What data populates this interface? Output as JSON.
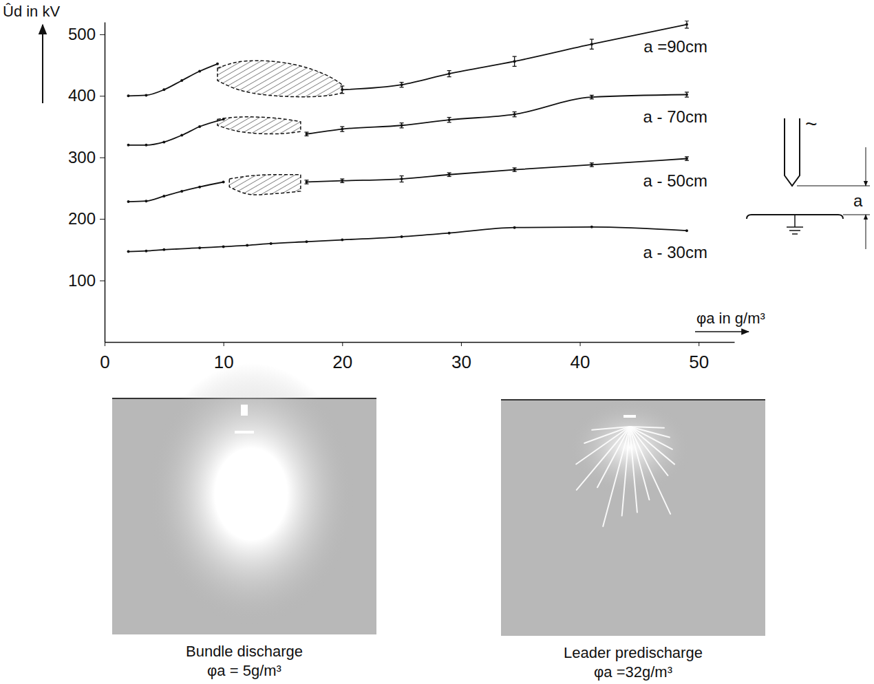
{
  "chart_data": {
    "type": "line",
    "y_label": "Ûd in kV",
    "x_label": "φa in g/m³",
    "xlim": [
      0,
      53
    ],
    "xticks": [
      0,
      10,
      20,
      30,
      40,
      50
    ],
    "ylim": [
      0,
      520
    ],
    "yticks": [
      100,
      200,
      300,
      400,
      500
    ],
    "grid": false,
    "marker": "point",
    "color": "#111111",
    "series": [
      {
        "name": "a =90cm",
        "x": [
          2,
          3.5,
          5,
          6.5,
          8,
          9.5,
          15,
          20,
          25,
          29,
          34.5,
          41,
          49
        ],
        "values": [
          400,
          401,
          410,
          425,
          440,
          452,
          null,
          410,
          418,
          436,
          456,
          484,
          516
        ],
        "errors": [
          null,
          null,
          null,
          null,
          null,
          null,
          null,
          6,
          4,
          5,
          8,
          8,
          6
        ],
        "band": {
          "x": [
            9.5,
            11,
            13,
            15,
            17,
            19,
            20
          ],
          "upper": [
            445,
            456,
            458,
            455,
            447,
            432,
            418
          ],
          "lower": [
            425,
            410,
            402,
            399,
            398,
            400,
            405
          ]
        }
      },
      {
        "name": "a - 70cm",
        "x": [
          2,
          3.5,
          5,
          6.5,
          8,
          10,
          13,
          17,
          20,
          25,
          29,
          34.5,
          41,
          49
        ],
        "values": [
          320,
          320,
          325,
          336,
          350,
          362,
          null,
          338,
          346,
          352,
          361,
          370,
          398,
          402
        ],
        "errors": [
          null,
          null,
          null,
          null,
          null,
          null,
          null,
          3,
          4,
          4,
          4,
          4,
          3,
          4
        ],
        "band": {
          "x": [
            9.5,
            11,
            13,
            15,
            16.5
          ],
          "upper": [
            362,
            366,
            366,
            363,
            358
          ],
          "lower": [
            352,
            342,
            338,
            338,
            342
          ]
        }
      },
      {
        "name": "a - 50cm",
        "x": [
          2,
          3.5,
          5,
          6.5,
          8,
          10,
          13,
          17,
          20,
          25,
          29,
          34.5,
          41,
          49
        ],
        "values": [
          228,
          229,
          237,
          245,
          252,
          260,
          null,
          260,
          262,
          265,
          272,
          280,
          288,
          298
        ],
        "errors": [
          null,
          null,
          null,
          null,
          null,
          null,
          null,
          3,
          3,
          5,
          3,
          3,
          3,
          3
        ],
        "band": {
          "x": [
            10.5,
            12,
            13.5,
            15,
            16.5
          ],
          "upper": [
            265,
            270,
            272,
            272,
            272
          ],
          "lower": [
            252,
            238,
            240,
            242,
            245
          ]
        }
      },
      {
        "name": "a - 30cm",
        "x": [
          2,
          3.5,
          5,
          8,
          10,
          12,
          14,
          17,
          20,
          25,
          29,
          34.5,
          41,
          49
        ],
        "values": [
          147,
          148,
          150,
          153,
          155,
          157,
          160,
          163,
          166,
          171,
          177,
          186,
          187,
          181
        ]
      }
    ]
  },
  "figure": {
    "schematic": {
      "source_symbol": "~",
      "gap_label": "a"
    },
    "photos": [
      {
        "caption": "Bundle discharge",
        "subcaption": "φa = 5g/m³",
        "kind": "bundle"
      },
      {
        "caption": "Leader predischarge",
        "subcaption": "φa =32g/m³",
        "kind": "leader"
      }
    ]
  }
}
